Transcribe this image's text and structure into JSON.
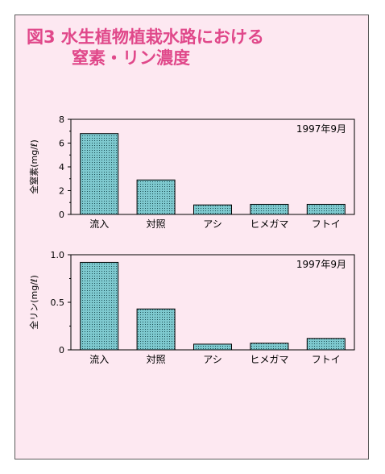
{
  "title": {
    "line1": "図3 水生植物植栽水路における",
    "line2": "窒素・リン濃度"
  },
  "colors": {
    "panel_bg": "#fde8f1",
    "title": "#e0488a",
    "bar_fill": "#7ec9cf",
    "border": "#000000"
  },
  "chart_data": [
    {
      "type": "bar",
      "annotation": "1997年9月",
      "ylabel": "全窒素(mg/ℓ)",
      "categories": [
        "流入",
        "対照",
        "アシ",
        "ヒメガマ",
        "フトイ"
      ],
      "values": [
        6.8,
        2.9,
        0.8,
        0.85,
        0.85
      ],
      "ylim": [
        0,
        8
      ],
      "yticks": [
        "0",
        "2",
        "4",
        "6",
        "8"
      ],
      "ytick_values": [
        0,
        2,
        4,
        6,
        8
      ]
    },
    {
      "type": "bar",
      "annotation": "1997年9月",
      "ylabel": "全リン(mg/ℓ)",
      "categories": [
        "流入",
        "対照",
        "アシ",
        "ヒメガマ",
        "フトイ"
      ],
      "values": [
        0.92,
        0.43,
        0.06,
        0.07,
        0.12
      ],
      "ylim": [
        0,
        1.0
      ],
      "yticks": [
        "0",
        "0.5",
        "1.0"
      ],
      "ytick_values": [
        0,
        0.5,
        1.0
      ]
    }
  ]
}
